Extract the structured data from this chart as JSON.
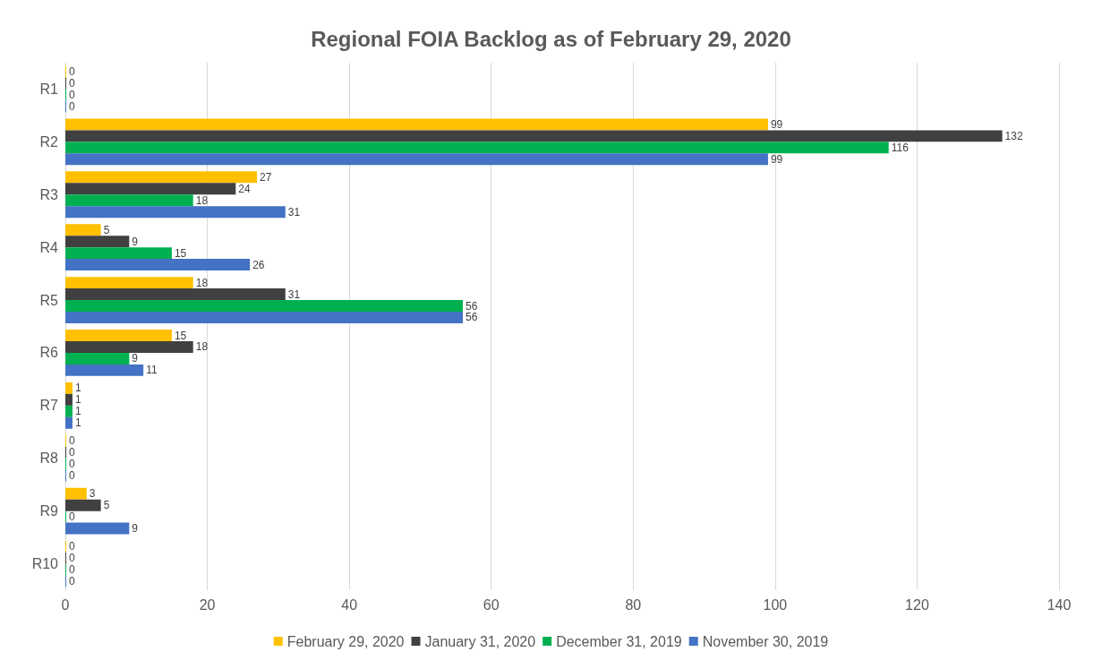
{
  "chart_data": {
    "type": "bar",
    "orientation": "horizontal",
    "title": "Regional FOIA Backlog as of February 29, 2020",
    "categories": [
      "R1",
      "R2",
      "R3",
      "R4",
      "R5",
      "R6",
      "R7",
      "R8",
      "R9",
      "R10"
    ],
    "series": [
      {
        "name": "February 29, 2020",
        "color": "#ffc000",
        "values": [
          0,
          99,
          27,
          5,
          18,
          15,
          1,
          0,
          3,
          0
        ]
      },
      {
        "name": "January 31, 2020",
        "color": "#404040",
        "values": [
          0,
          132,
          24,
          9,
          31,
          18,
          1,
          0,
          5,
          0
        ]
      },
      {
        "name": "December 31, 2019",
        "color": "#00b050",
        "values": [
          0,
          116,
          18,
          15,
          56,
          9,
          1,
          0,
          0,
          0
        ]
      },
      {
        "name": "November 30, 2019",
        "color": "#4472c4",
        "values": [
          0,
          99,
          31,
          26,
          56,
          11,
          1,
          0,
          9,
          0
        ]
      }
    ],
    "xlim": [
      0,
      140
    ],
    "xticks": [
      0,
      20,
      40,
      60,
      80,
      100,
      120,
      140
    ],
    "grid": "x",
    "legend": "bottom",
    "data_labels": true
  }
}
